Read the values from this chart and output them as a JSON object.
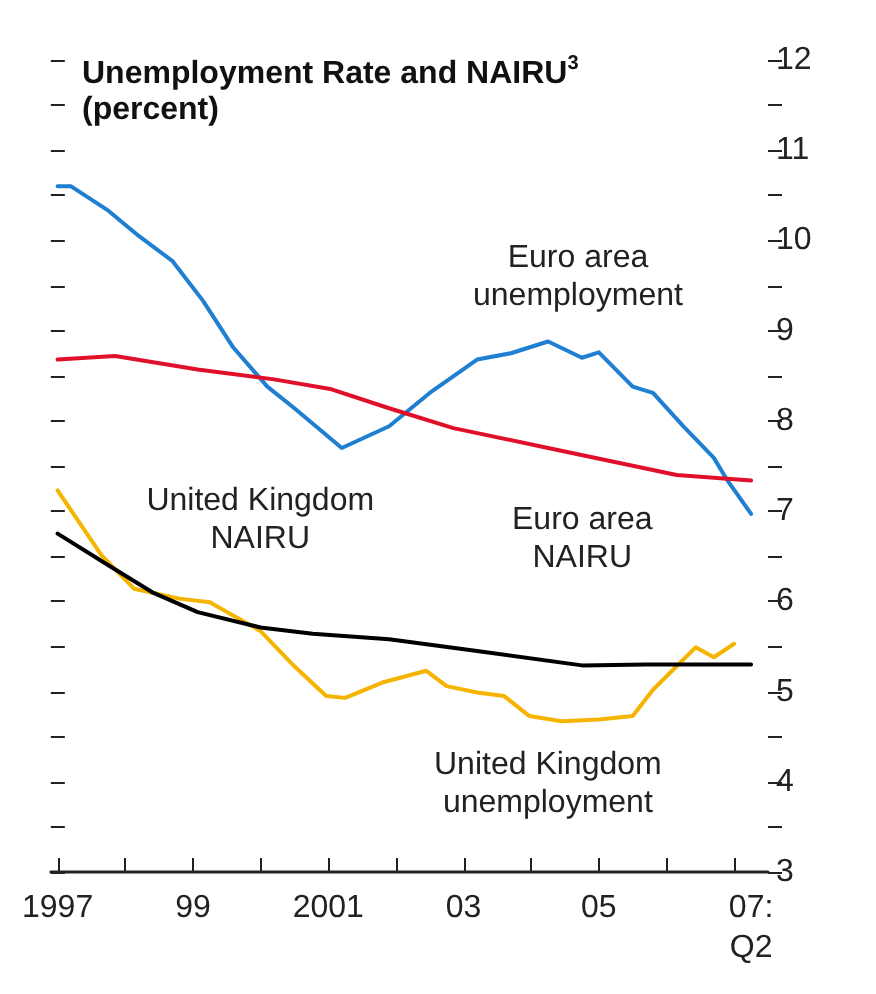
{
  "chart_data": {
    "type": "line",
    "title": "Unemployment Rate and NAIRU$^{3}$",
    "subtitle": "(percent)",
    "xlim": [
      1996.9,
      2007.5
    ],
    "ylim": [
      3,
      12
    ],
    "xticks": [
      {
        "value": 1997,
        "label": "1997"
      },
      {
        "value": 1998,
        "label": null
      },
      {
        "value": 1999,
        "label": "99"
      },
      {
        "value": 2000,
        "label": null
      },
      {
        "value": 2001,
        "label": "2001"
      },
      {
        "value": 2002,
        "label": null
      },
      {
        "value": 2003,
        "label": "03"
      },
      {
        "value": 2004,
        "label": null
      },
      {
        "value": 2005,
        "label": "05"
      },
      {
        "value": 2006,
        "label": null
      },
      {
        "value": 2007,
        "label": null
      },
      {
        "value": 2007.25,
        "label": "07:\nQ2"
      }
    ],
    "yticks": [
      3,
      {
        "value": 3.5,
        "label": null
      },
      4,
      {
        "value": 4.5,
        "label": null
      },
      5,
      {
        "value": 5.5,
        "label": null
      },
      6,
      {
        "value": 6.5,
        "label": null
      },
      7,
      {
        "value": 7.5,
        "label": null
      },
      8,
      {
        "value": 8.5,
        "label": null
      },
      9,
      {
        "value": 9.5,
        "label": null
      },
      10,
      {
        "value": 10.5,
        "label": null
      },
      11,
      {
        "value": 11.5,
        "label": null
      },
      12
    ],
    "grid": false,
    "legend": false,
    "marker": "none",
    "line_style": "solid",
    "series": [
      {
        "name": "Euro area\nunemployment",
        "color": "#1f7fd0",
        "x": [
          1997.0,
          1997.2,
          1997.75,
          1998.2,
          1998.7,
          1999.15,
          1999.6,
          2000.1,
          2000.5,
          2001.2,
          2001.9,
          2002.5,
          2003.2,
          2003.7,
          2004.25,
          2004.75,
          2005.0,
          2005.5,
          2005.8,
          2006.25,
          2006.7,
          2006.9,
          2007.25
        ],
        "values": [
          10.6,
          10.6,
          10.33,
          10.05,
          9.77,
          9.33,
          8.81,
          8.38,
          8.14,
          7.7,
          7.94,
          8.31,
          8.68,
          8.75,
          8.88,
          8.7,
          8.76,
          8.38,
          8.31,
          7.94,
          7.59,
          7.34,
          6.97
        ]
      },
      {
        "name": "Euro area\nNAIRU",
        "color": "#e0102a",
        "x": [
          1997.0,
          1997.85,
          1999.07,
          2000.2,
          2001.05,
          2001.9,
          2002.85,
          2004.25,
          2005.2,
          2006.15,
          2007.25
        ],
        "values": [
          8.68,
          8.72,
          8.57,
          8.46,
          8.35,
          8.14,
          7.92,
          7.7,
          7.55,
          7.4,
          7.34
        ]
      },
      {
        "name": "United Kingdom\nunemployment",
        "color": "#f5b400",
        "x": [
          1997.0,
          1997.65,
          1998.13,
          1998.8,
          1999.25,
          2000.0,
          2000.5,
          2000.97,
          2001.25,
          2001.8,
          2002.45,
          2002.75,
          2003.2,
          2003.6,
          2003.97,
          2004.45,
          2005.0,
          2005.5,
          2005.8,
          2006.43,
          2006.7,
          2007.0
        ],
        "values": [
          7.23,
          6.51,
          6.14,
          6.03,
          5.99,
          5.67,
          5.28,
          4.95,
          4.93,
          5.1,
          5.23,
          5.06,
          4.99,
          4.95,
          4.73,
          4.67,
          4.69,
          4.73,
          5.02,
          5.49,
          5.38,
          5.53
        ]
      },
      {
        "name": "United Kingdom\nNAIRU",
        "color": "#000000",
        "x": [
          1997.0,
          1997.75,
          1998.4,
          1999.07,
          2000.0,
          2000.77,
          2001.9,
          2003.2,
          2004.75,
          2005.7,
          2007.25
        ],
        "values": [
          6.75,
          6.4,
          6.1,
          5.88,
          5.71,
          5.64,
          5.58,
          5.45,
          5.29,
          5.3,
          5.3
        ]
      }
    ]
  }
}
